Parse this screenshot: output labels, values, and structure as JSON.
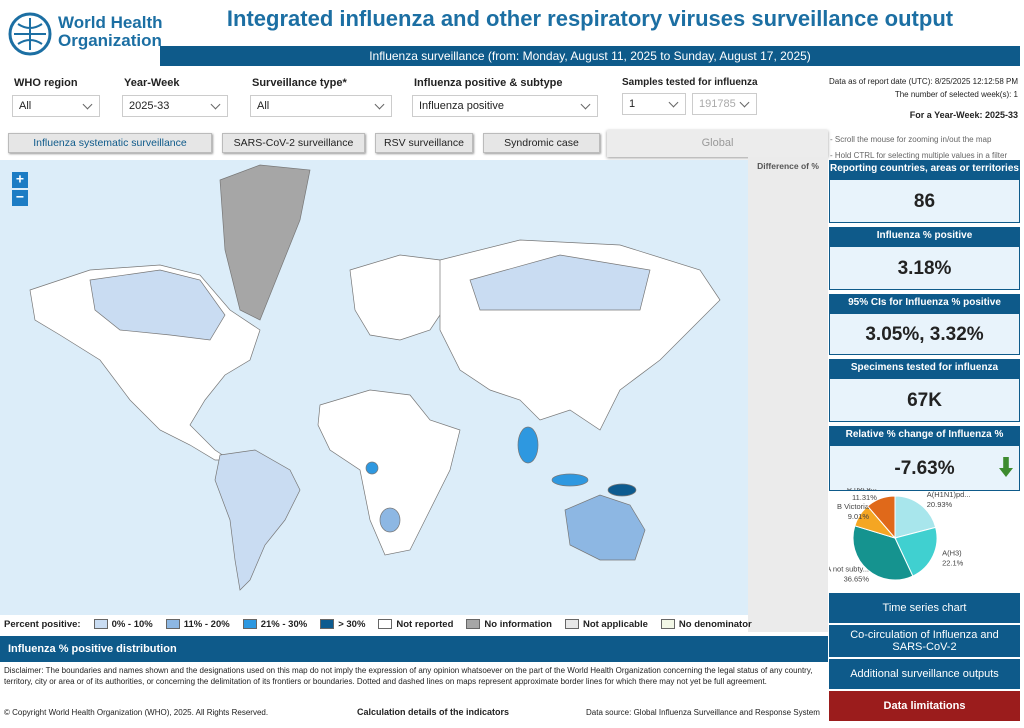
{
  "header": {
    "logo_lines": [
      "World Health",
      "Organization"
    ],
    "title": "Integrated influenza and other respiratory viruses surveillance output",
    "subtitle": "Influenza surveillance (from: Monday, August 11, 2025 to Sunday, August 17, 2025)"
  },
  "filters": [
    {
      "label": "WHO region",
      "value": "All"
    },
    {
      "label": "Year-Week",
      "value": "2025-33"
    },
    {
      "label": "Surveillance type*",
      "value": "All"
    },
    {
      "label": "Influenza positive & subtype",
      "value": "Influenza positive"
    }
  ],
  "samples": {
    "label": "Samples tested for influenza",
    "min": "1",
    "max": "191785"
  },
  "info": [
    "Data as of report date (UTC): 8/25/2025 12:12:58 PM",
    "The number of selected week(s): 1",
    "For a Year-Week: 2025-33"
  ],
  "tabs": [
    "Influenza systematic surveillance",
    "SARS-CoV-2 surveillance",
    "RSV surveillance",
    "Syndromic case"
  ],
  "global_button": "Global",
  "hints": [
    "- Scroll the mouse for zooming in/out the map",
    "- Hold CTRL for selecting multiple values in a filter"
  ],
  "difference_label": "Difference of %",
  "zoom": [
    "+",
    "−"
  ],
  "kpis": [
    {
      "label": "Reporting countries, areas or territories",
      "value": "86"
    },
    {
      "label": "Influenza % positive",
      "value": "3.18%"
    },
    {
      "label": "95% CIs for Influenza % positive",
      "value": "3.05%, 3.32%"
    },
    {
      "label": "Specimens tested for influenza",
      "value": "67K"
    },
    {
      "label": "Relative % change of Influenza % positive",
      "value": "-7.63%"
    }
  ],
  "chart_data": {
    "type": "pie",
    "categories": [
      "A(H1N1)pd...",
      "A(H3)",
      "A not subty...",
      "B Victoria",
      "B not d..."
    ],
    "values": [
      20.93,
      22.1,
      36.65,
      9.01,
      11.31
    ],
    "value_labels": [
      "20.93%",
      "22.1%",
      "36.65%",
      "9.01%",
      "11.31%"
    ],
    "colors": [
      "#a8e6ec",
      "#40d0d0",
      "#15938f",
      "#f5a623",
      "#e0691a"
    ]
  },
  "legend": {
    "title": "Percent positive:",
    "items": [
      {
        "label": "0% - 10%",
        "color": "#c9dcf2"
      },
      {
        "label": "11% - 20%",
        "color": "#8db7e3"
      },
      {
        "label": "21% - 30%",
        "color": "#2e98e0"
      },
      {
        "label": "> 30%",
        "color": "#0d5b8f"
      },
      {
        "label": "Not reported",
        "color": "#ffffff"
      },
      {
        "label": "No information",
        "color": "#a6a6a6"
      },
      {
        "label": "Not applicable",
        "color": "#e8e8e8"
      },
      {
        "label": "No denominator",
        "color": "#f2f7e6"
      }
    ]
  },
  "distribution_title": "Influenza % positive distribution",
  "disclaimer": "Disclaimer: The boundaries and names shown and the designations used on this map do not imply the expression of any opinion whatsoever on the part of the World Health Organization concerning the legal status of any country, territory, city or area or of its authorities, or concerning the delimitation of its frontiers or boundaries. Dotted and dashed lines on maps represent approximate border lines for which there may not yet be full agreement.",
  "footer": {
    "copyright": "© Copyright World Health Organization (WHO), 2025. All Rights Reserved.",
    "calc": "Calculation details of the indicators",
    "source": "Data source: Global Influenza Surveillance and Response System"
  },
  "side_buttons": [
    "Time series chart",
    "Co-circulation of Influenza and SARS-CoV-2",
    "Additional surveillance outputs",
    "Data limitations"
  ]
}
